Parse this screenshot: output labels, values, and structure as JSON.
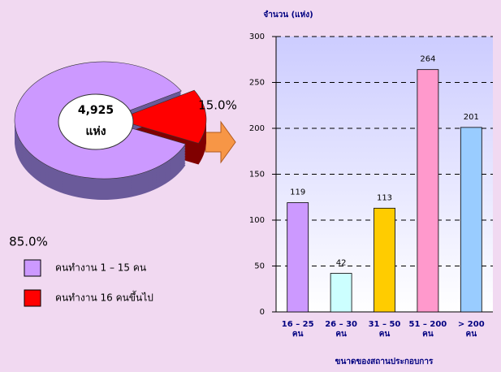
{
  "chart_data": [
    {
      "type": "pie",
      "series": [
        {
          "name": "คนทำงาน 1 – 15 คน",
          "color": "#cc99ff",
          "side": "#6a5a9a",
          "value": 85.0,
          "value_label": "85.0%"
        },
        {
          "name": "คนทำงาน 16 คนขึ้นไป",
          "color": "#ff0000",
          "side": "#800000",
          "value": 15.0,
          "value_label": "15.0%"
        }
      ],
      "annotation": [
        "4,925",
        "แห่ง"
      ]
    },
    {
      "type": "bar",
      "y_label": "จำนวน (แห่ง)",
      "x_label": "ขนาดของสถานประกอบการ",
      "categories": [
        [
          "16 – 25",
          "คน"
        ],
        [
          "26 – 30",
          "คน"
        ],
        [
          "31 – 50",
          "คน"
        ],
        [
          "51 – 200",
          "คน"
        ],
        [
          "> 200",
          "คน"
        ]
      ],
      "values": [
        119,
        42,
        113,
        264,
        201
      ],
      "colors": [
        "#cc99ff",
        "#ccffff",
        "#ffcc00",
        "#ff99cc",
        "#99ccff"
      ],
      "ylim": [
        0,
        300
      ],
      "yticks": [
        0,
        50,
        100,
        150,
        200,
        250,
        300
      ],
      "grid": true
    }
  ]
}
